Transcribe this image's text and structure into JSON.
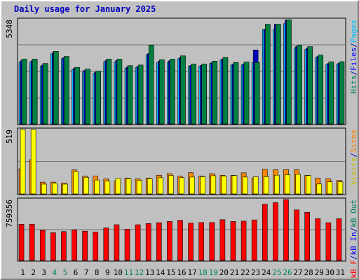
{
  "chart_data": {
    "type": "bar",
    "title": "Daily usage for January 2025",
    "days": [
      "1",
      "2",
      "3",
      "4",
      "5",
      "6",
      "7",
      "8",
      "9",
      "10",
      "11",
      "12",
      "13",
      "14",
      "15",
      "16",
      "17",
      "18",
      "19",
      "20",
      "21",
      "22",
      "23",
      "24",
      "25",
      "26",
      "27",
      "28",
      "29",
      "30",
      "31"
    ],
    "weekend_days": [
      "4",
      "5",
      "11",
      "12",
      "18",
      "19",
      "25",
      "26"
    ],
    "panels": [
      {
        "name": "hits",
        "max_label": "5348",
        "ymax": 5348,
        "legend": [
          {
            "label": "Hits",
            "color": "#00805c"
          },
          {
            "label": "/",
            "color": "#0000c0"
          },
          {
            "label": "Files",
            "color": "#0000ff"
          },
          {
            "label": "/",
            "color": "#0000c0"
          },
          {
            "label": "Pages",
            "color": "#00c0ff"
          }
        ],
        "series": [
          {
            "name": "Hits",
            "color": "#008040",
            "values": [
              3320,
              3320,
              3100,
              3720,
              3460,
              2900,
              2810,
              2710,
              3320,
              3320,
              2990,
              3020,
              4040,
              3290,
              3320,
              3490,
              3070,
              3070,
              3220,
              3410,
              3150,
              3170,
              3150,
              5110,
              5110,
              5340,
              4040,
              3960,
              3530,
              3180,
              3190
            ]
          },
          {
            "name": "Files",
            "color": "#0000c0",
            "values": [
              3240,
              3240,
              3020,
              3650,
              3390,
              2850,
              2750,
              2650,
              3250,
              3250,
              2910,
              2950,
              3600,
              3220,
              3240,
              3400,
              3000,
              3000,
              3140,
              3330,
              3060,
              3080,
              3790,
              4850,
              5110,
              5330,
              3970,
              3880,
              3460,
              3100,
              3110
            ]
          },
          {
            "name": "Pages",
            "color": "#00bfff",
            "values": [
              3170,
              3170,
              2960,
              3590,
              3340,
              2790,
              2690,
              2590,
              3180,
              3180,
              2850,
              2890,
              3540,
              3140,
              3160,
              3340,
              2960,
              2960,
              3100,
              3270,
              3020,
              3020,
              3150,
              4830,
              4840,
              5140,
              3900,
              3820,
              3400,
              3050,
              3060
            ]
          }
        ]
      },
      {
        "name": "visits",
        "max_label": "519",
        "ymax": 519,
        "legend": [
          {
            "label": "Visits",
            "color": "#c0c000"
          },
          {
            "label": "/",
            "color": "#0000c0"
          },
          {
            "label": "Sites",
            "color": "#ff8000"
          }
        ],
        "series": [
          {
            "name": "Visits",
            "color": "#ffff00",
            "values": [
              519,
              519,
              79,
              86,
              79,
              181,
              134,
              112,
              103,
              124,
              123,
              109,
              122,
              130,
              149,
              131,
              136,
              139,
              147,
              144,
              148,
              136,
              138,
              139,
              151,
              155,
              158,
              148,
              80,
              98,
              98
            ]
          },
          {
            "name": "Sites",
            "color": "#ff8800",
            "values": [
              202,
              276,
              95,
              95,
              86,
              193,
              143,
              143,
              120,
              104,
              128,
              120,
              128,
              150,
              163,
              143,
              171,
              143,
              163,
              150,
              150,
              170,
              129,
              198,
              194,
              196,
              194,
              150,
              127,
              121,
              109
            ]
          }
        ]
      },
      {
        "name": "kbytes",
        "max_label": "759356",
        "ymax": 759356,
        "legend": [
          {
            "label": "kB F",
            "color": "#ff0000"
          },
          {
            "label": "/",
            "color": "#0000c0"
          },
          {
            "label": "kB In",
            "color": "#0000ff"
          },
          {
            "label": "/",
            "color": "#0000c0"
          },
          {
            "label": "kB Out",
            "color": "#00805c"
          }
        ],
        "series": [
          {
            "name": "kB F",
            "color": "#ff0000",
            "values": [
              450000,
              450000,
              375000,
              345000,
              360000,
              380000,
              365000,
              355000,
              405000,
              445000,
              390000,
              445000,
              460000,
              470000,
              485000,
              500000,
              465000,
              472000,
              473000,
              508000,
              485000,
              490000,
              505000,
              700000,
              720000,
              760000,
              630000,
              600000,
              520000,
              470000,
              520000
            ]
          }
        ]
      }
    ]
  }
}
